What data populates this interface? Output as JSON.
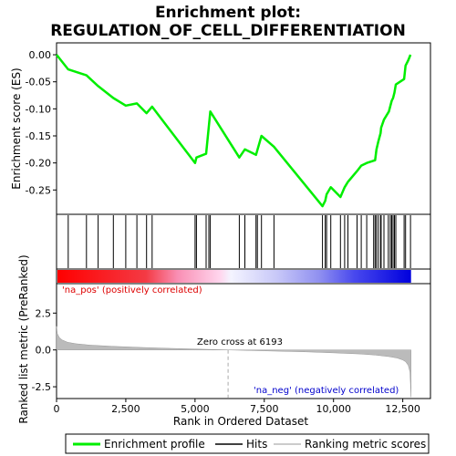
{
  "chart_data": {
    "type": "line",
    "title_line1": "Enrichment plot:",
    "title_line2": "REGULATION_OF_CELL_DIFFERENTIATION",
    "top_panel": {
      "ylabel": "Enrichment score (ES)",
      "ylim": [
        -0.295,
        0.022
      ],
      "yticks": [
        0.0,
        -0.05,
        -0.1,
        -0.15,
        -0.2,
        -0.25
      ],
      "ytick_labels": [
        "0.00",
        "-0.05",
        "-0.10",
        "-0.15",
        "-0.20",
        "-0.25"
      ],
      "series": [
        {
          "name": "Enrichment profile",
          "color": "#00ee00",
          "x": [
            0,
            420,
            1080,
            1500,
            2050,
            2500,
            2900,
            3250,
            3450,
            5000,
            5050,
            5400,
            5550,
            6600,
            6800,
            7200,
            7400,
            7850,
            9600,
            9700,
            9750,
            9900,
            10250,
            10400,
            10520,
            10850,
            11000,
            11200,
            11500,
            11550,
            11620,
            11700,
            11720,
            11820,
            12000,
            12100,
            12150,
            12200,
            12250,
            12550,
            12600,
            12700,
            12780
          ],
          "y": [
            0.0,
            -0.027,
            -0.038,
            -0.058,
            -0.08,
            -0.094,
            -0.09,
            -0.108,
            -0.096,
            -0.2,
            -0.19,
            -0.183,
            -0.105,
            -0.19,
            -0.175,
            -0.185,
            -0.15,
            -0.17,
            -0.28,
            -0.27,
            -0.258,
            -0.245,
            -0.263,
            -0.245,
            -0.235,
            -0.215,
            -0.205,
            -0.2,
            -0.195,
            -0.175,
            -0.16,
            -0.145,
            -0.135,
            -0.12,
            -0.105,
            -0.085,
            -0.08,
            -0.07,
            -0.055,
            -0.045,
            -0.02,
            -0.01,
            0.0
          ]
        }
      ]
    },
    "hits": [
      420,
      1080,
      1500,
      2050,
      2500,
      2900,
      3250,
      3450,
      5000,
      5050,
      5400,
      5500,
      5550,
      6600,
      6800,
      7200,
      7250,
      7400,
      7850,
      9600,
      9700,
      9750,
      9900,
      10250,
      10400,
      10520,
      10850,
      11000,
      11200,
      11450,
      11500,
      11550,
      11620,
      11700,
      11720,
      11820,
      11980,
      12050,
      12100,
      12150,
      12200,
      12250,
      12550,
      12600,
      12780
    ],
    "bottom_panel": {
      "ylabel": "Ranked list metric (PreRanked)",
      "xlabel": "Rank in Ordered Dataset",
      "ylim": [
        -3.3,
        4.5
      ],
      "yticks": [
        2.5,
        0.0,
        -2.5
      ],
      "ytick_labels": [
        "2.5",
        "0.0",
        "-2.5"
      ],
      "xlim": [
        0,
        13500
      ],
      "xticks": [
        0,
        2500,
        5000,
        7500,
        10000,
        12500
      ],
      "xtick_labels": [
        "0",
        "2,500",
        "5,000",
        "7,500",
        "10,000",
        "12,500"
      ],
      "zero_cross_label": "Zero cross at 6193",
      "zero_cross": 6193,
      "pos_label": "'na_pos' (positively correlated)",
      "neg_label": "'na_neg' (negatively correlated)",
      "fill_color": "#bbbbbb",
      "metric_x": [
        0,
        30,
        100,
        200,
        400,
        700,
        1200,
        2000,
        3000,
        4000,
        5000,
        6193,
        7500,
        9000,
        10000,
        11000,
        11500,
        12000,
        12300,
        12500,
        12600,
        12700,
        12760,
        12780,
        12800
      ],
      "metric_y": [
        1.6,
        1.1,
        0.85,
        0.68,
        0.52,
        0.42,
        0.33,
        0.25,
        0.17,
        0.11,
        0.06,
        0.0,
        -0.06,
        -0.13,
        -0.2,
        -0.28,
        -0.35,
        -0.45,
        -0.55,
        -0.68,
        -0.8,
        -1.05,
        -1.5,
        -2.3,
        -3.2
      ]
    },
    "legend": [
      {
        "label": "Enrichment profile",
        "color": "#00ee00"
      },
      {
        "label": "Hits",
        "color": "#000000"
      },
      {
        "label": "Ranking metric scores",
        "color": "#bbbbbb"
      }
    ]
  }
}
